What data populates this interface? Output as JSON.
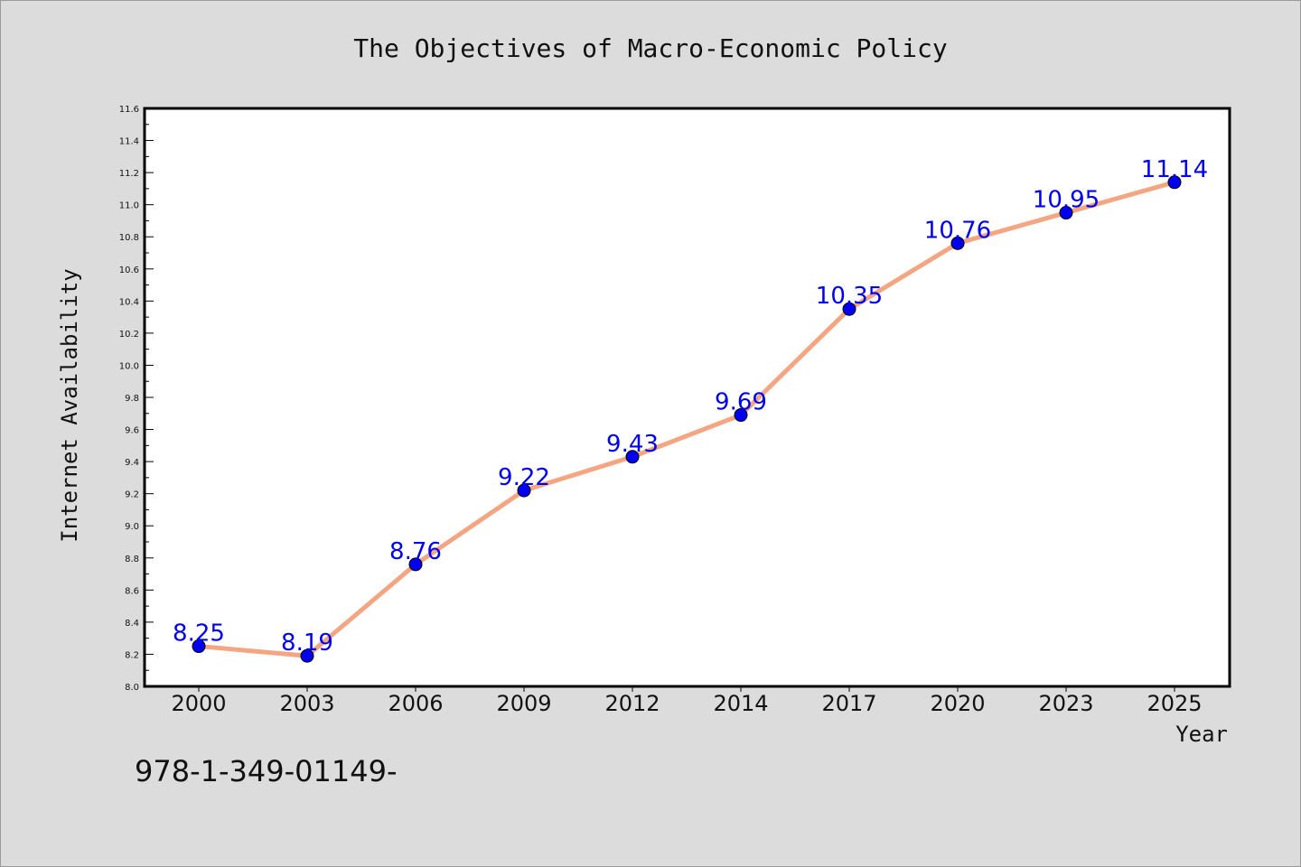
{
  "chart_data": {
    "type": "line",
    "title": "The Objectives of Macro-Economic Policy",
    "xlabel": "Year",
    "ylabel": "Internet Availability",
    "categories": [
      "2000",
      "2003",
      "2006",
      "2009",
      "2012",
      "2014",
      "2017",
      "2020",
      "2023",
      "2025"
    ],
    "series": [
      {
        "values": [
          8.25,
          8.19,
          8.76,
          9.22,
          9.43,
          9.69,
          10.35,
          10.76,
          10.95,
          11.14
        ]
      }
    ],
    "ylim": [
      8.0,
      11.6
    ],
    "yticks": [
      "8.0",
      "8.2",
      "8.4",
      "8.6",
      "8.8",
      "9.0",
      "9.2",
      "9.4",
      "9.6",
      "9.8",
      "10.0",
      "10.2",
      "10.4",
      "10.6",
      "10.8",
      "11.0",
      "11.2",
      "11.4",
      "11.6"
    ],
    "data_labels": [
      "8.25",
      "8.19",
      "8.76",
      "9.22",
      "9.43",
      "9.69",
      "10.35",
      "10.76",
      "10.95",
      "11.14"
    ],
    "grid": false,
    "colors": {
      "line": "#f4a582",
      "marker": "#0000ee",
      "data_label": "#0000ee"
    }
  },
  "footer_text": "978-1-349-01149-"
}
